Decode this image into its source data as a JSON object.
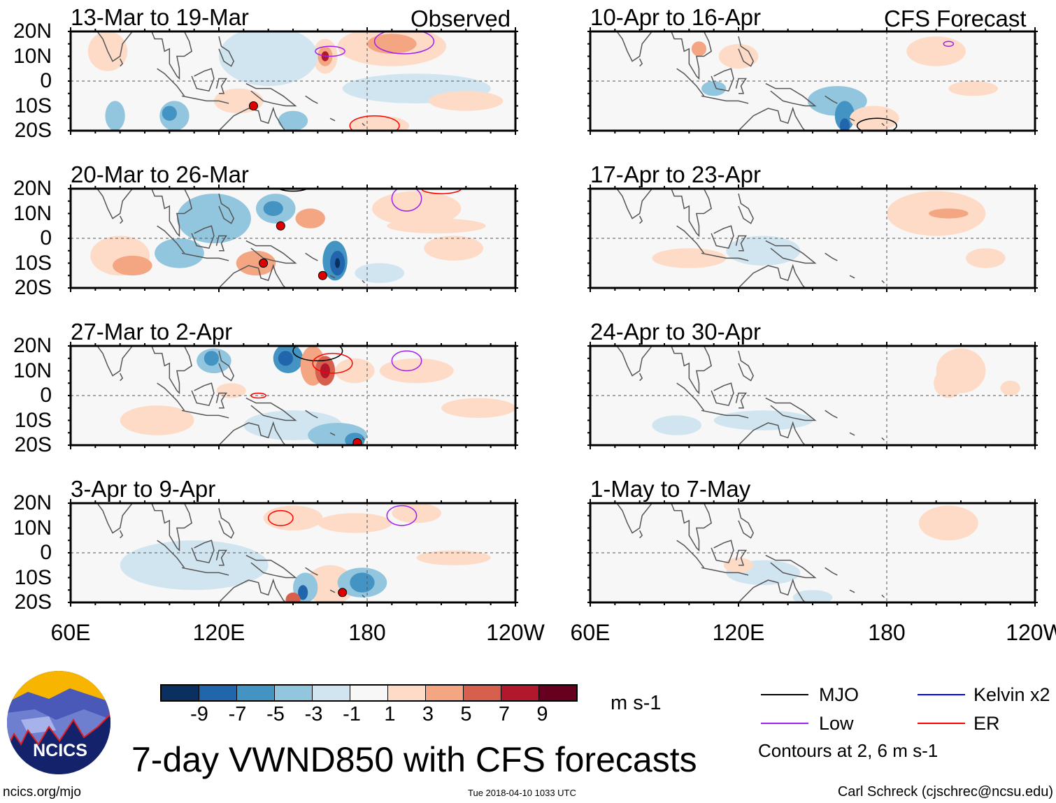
{
  "panels": {
    "observed_label": "Observed",
    "forecast_label": "CFS Forecast",
    "observed": [
      {
        "title": "13-Mar to 19-Mar"
      },
      {
        "title": "20-Mar to 26-Mar"
      },
      {
        "title": "27-Mar to 2-Apr"
      },
      {
        "title": "3-Apr to 9-Apr"
      }
    ],
    "forecast": [
      {
        "title": "10-Apr to 16-Apr"
      },
      {
        "title": "17-Apr to 23-Apr"
      },
      {
        "title": "24-Apr to 30-Apr"
      },
      {
        "title": "1-May to 7-May"
      }
    ]
  },
  "axes": {
    "lat_labels": [
      "20N",
      "10N",
      "0",
      "10S",
      "20S"
    ],
    "lon_labels": [
      "60E",
      "120E",
      "180",
      "120W"
    ]
  },
  "colorbar": {
    "labels": [
      "-9",
      "-7",
      "-5",
      "-3",
      "-1",
      "1",
      "3",
      "5",
      "7",
      "9"
    ],
    "colors": [
      "#0a3060",
      "#2166ac",
      "#4393c3",
      "#92c5de",
      "#d1e5f0",
      "#f7f7f7",
      "#fddbc7",
      "#f4a582",
      "#d6604d",
      "#b2182b",
      "#67001f"
    ],
    "units": "m s-1"
  },
  "legend": {
    "items": [
      {
        "label": "MJO",
        "color": "#000000"
      },
      {
        "label": "Kelvin x2",
        "color": "#0000ff"
      },
      {
        "label": "Low",
        "color": "#a020f0"
      },
      {
        "label": "ER",
        "color": "#ff0000"
      }
    ],
    "contours_note": "Contours at 2, 6 m s-1"
  },
  "logo_text": "NCICS",
  "main_title": "7-day VWND850 with CFS forecasts",
  "footer": {
    "url": "ncics.org/mjo",
    "timestamp": "Tue 2018-04-10 1033 UTC",
    "credit": "Carl Schreck (cjschrec@ncsu.edu)"
  }
}
